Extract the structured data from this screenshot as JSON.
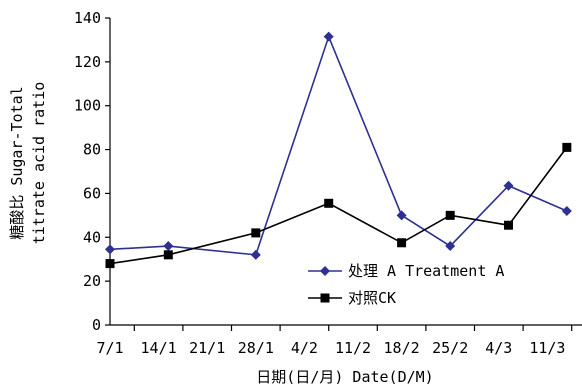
{
  "chart_data": {
    "type": "line",
    "title": "",
    "xlabel": "日期(日/月) Date(D/M)",
    "ylabel_line1": "糖酸比 Sugar-Total",
    "ylabel_line2": "titrate acid ratio",
    "categories": [
      "7/1",
      "14/1",
      "21/1",
      "28/1",
      "4/2",
      "11/2",
      "18/2",
      "25/2",
      "4/3",
      "11/3"
    ],
    "ylim": [
      0,
      140
    ],
    "yticks": [
      0,
      20,
      40,
      60,
      80,
      100,
      120,
      140
    ],
    "grid": false,
    "legend_position": "lower-right",
    "series": [
      {
        "name": "处理 A Treatment A",
        "color": "#2e3192",
        "marker": "diamond",
        "x": [
          "7/1",
          "14/1",
          "28/1",
          "7/2",
          "18/2",
          "25/2",
          "4/3",
          "11/3"
        ],
        "x_index": [
          0,
          1.2,
          3,
          4.5,
          6,
          7,
          8.2,
          9.4
        ],
        "values": [
          34.5,
          36,
          32,
          131.5,
          50,
          36,
          63.5,
          52
        ]
      },
      {
        "name": "对照CK",
        "color": "#000000",
        "marker": "square",
        "x": [
          "7/1",
          "14/1",
          "28/1",
          "7/2",
          "18/2",
          "25/2",
          "4/3",
          "11/3"
        ],
        "x_index": [
          0,
          1.2,
          3,
          4.5,
          6,
          7,
          8.2,
          9.4
        ],
        "values": [
          28,
          32,
          42,
          55.5,
          37.5,
          50,
          45.5,
          81
        ]
      }
    ]
  }
}
